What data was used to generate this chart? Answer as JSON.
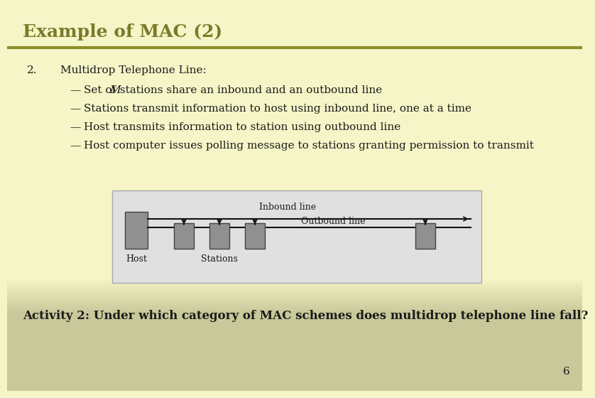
{
  "title": "Example of MAC (2)",
  "title_color": "#7a7a2a",
  "title_fontsize": 18,
  "bg_top_color": "#f5f5c8",
  "bg_bottom_color": "#c8c89a",
  "separator_color": "#8c8c2a",
  "number": "2.",
  "heading": "Multidrop Telephone Line:",
  "bullet_prefix": "—",
  "bullet1_pre": "Set of ",
  "bullet1_M": "M",
  "bullet1_post": " stations share an inbound and an outbound line",
  "bullet2": "Stations transmit information to host using inbound line, one at a time",
  "bullet3": "Host transmits information to station using outbound line",
  "bullet4": "Host computer issues polling message to stations granting permission to transmit",
  "activity_text": "Activity 2: Under which category of MAC schemes does multidrop telephone line fall?",
  "page_number": "6",
  "diagram_bg": "#e0e0e0",
  "diagram_border": "#aaaaaa",
  "box_color": "#909090",
  "box_edge_color": "#444444",
  "line_color": "#111111",
  "text_color": "#1a1a1a",
  "inbound_label": "Inbound line",
  "outbound_label": "Outbound line",
  "host_label": "Host",
  "stations_label": "Stations",
  "font_family": "DejaVu Serif",
  "body_fontsize": 11,
  "diagram_fontsize": 9
}
